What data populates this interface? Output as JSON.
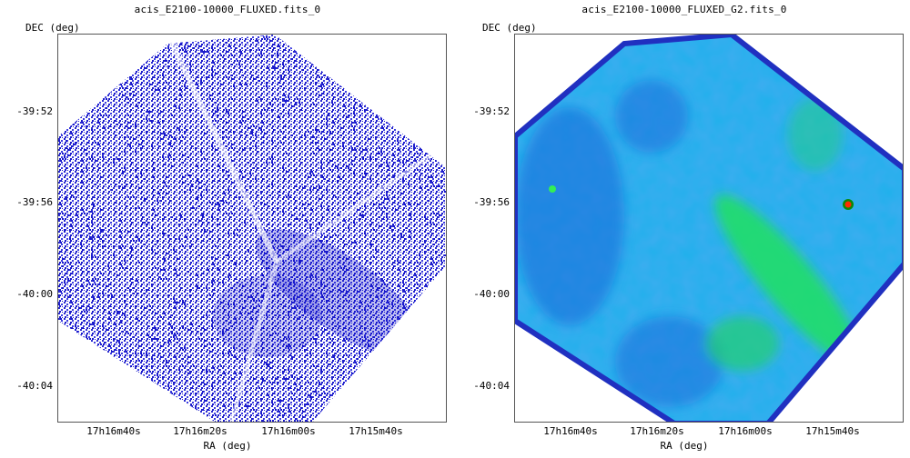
{
  "panels": [
    {
      "title": "acis_E2100-10000_FLUXED.fits_0",
      "ylabel": "DEC (deg)",
      "xlabel": "RA (deg)",
      "yticks": [
        "-39:52",
        "-39:56",
        "-40:00",
        "-40:04"
      ],
      "xticks": [
        "17h16m40s",
        "17h16m20s",
        "17h16m00s",
        "17h15m40s"
      ],
      "colormap": "blue-white scatter"
    },
    {
      "title": "acis_E2100-10000_FLUXED_G2.fits_0",
      "ylabel": "DEC (deg)",
      "xlabel": "RA (deg)",
      "yticks": [
        "-39:52",
        "-39:56",
        "-40:00",
        "-40:04"
      ],
      "xticks": [
        "17h16m40s",
        "17h16m20s",
        "17h16m00s",
        "17h15m40s"
      ],
      "colormap": "smoothed blue-cyan-green"
    }
  ],
  "colors": {
    "scatter_blue": "#1a1acc",
    "smooth_base": "#22b8f0",
    "smooth_green": "#22e060",
    "edge_blue": "#2030c0",
    "hot_source": "#ff2a00"
  }
}
